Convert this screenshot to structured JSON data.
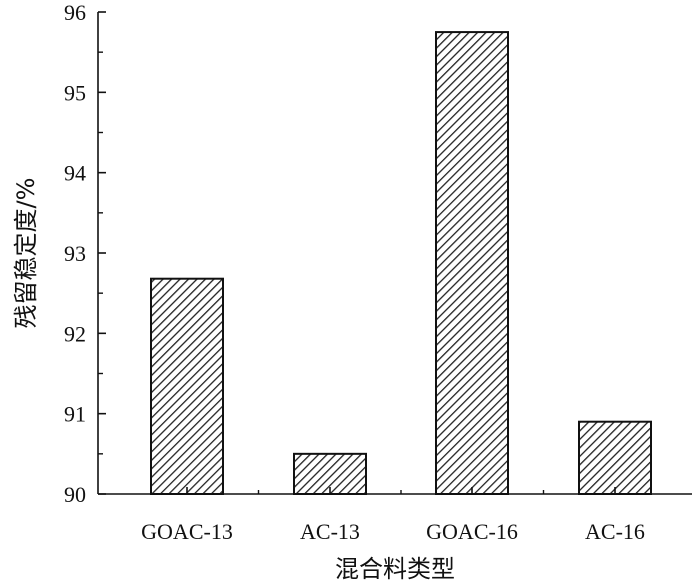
{
  "chart_data": {
    "type": "bar",
    "categories": [
      "GOAC-13",
      "AC-13",
      "GOAC-16",
      "AC-16"
    ],
    "values": [
      92.68,
      90.5,
      95.75,
      90.9
    ],
    "xlabel": "混合料类型",
    "ylabel": "残留稳定度/%",
    "ylim": [
      90,
      96
    ],
    "yticks": [
      90,
      91,
      92,
      93,
      94,
      95,
      96
    ],
    "grid": false,
    "bar_fill": "hatched",
    "colors": {
      "bar_stroke": "#111111",
      "hatch": "#222222",
      "axis": "#111111"
    }
  }
}
